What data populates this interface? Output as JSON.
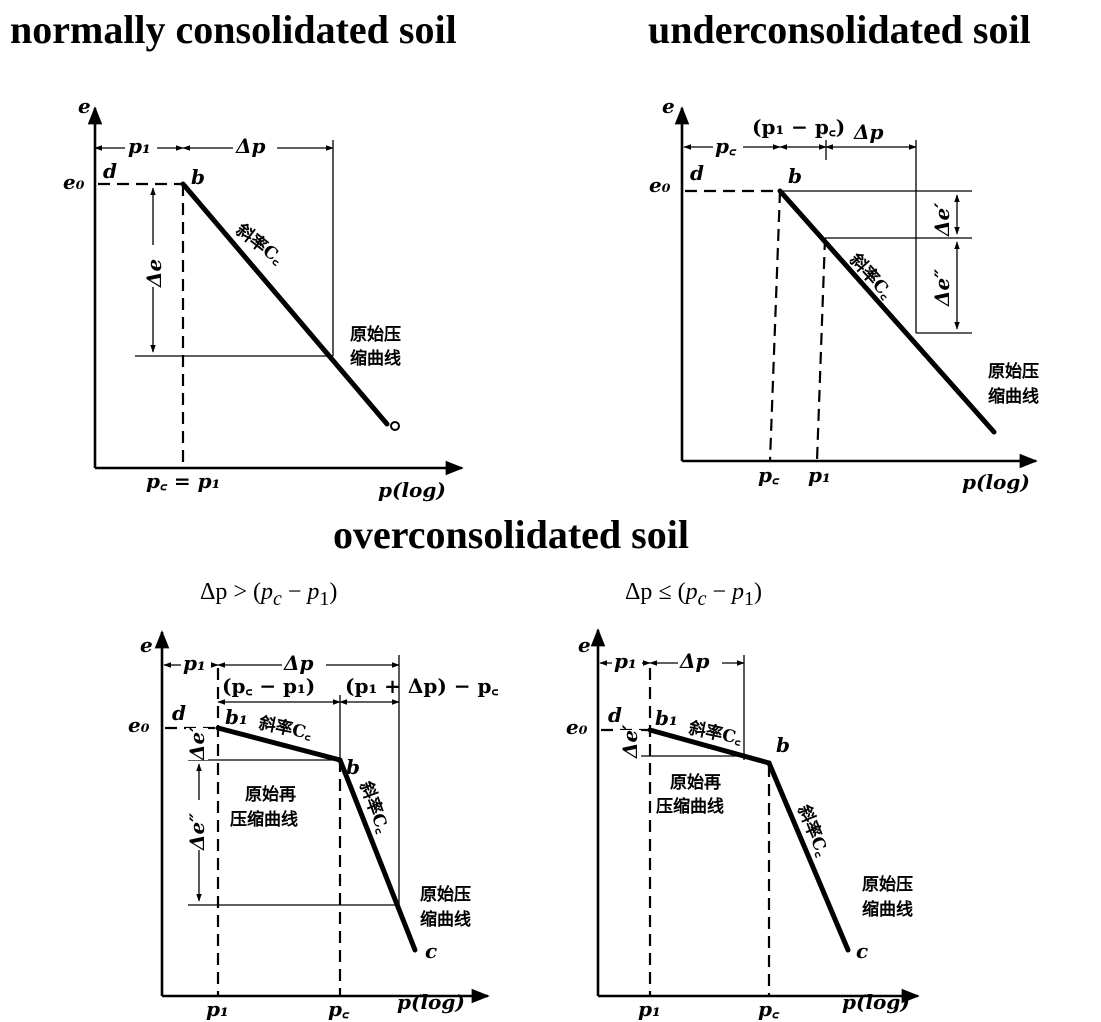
{
  "headings": {
    "normal": "normally consolidated soil",
    "under": "underconsolidated soil",
    "over": "overconsolidated soil"
  },
  "conditions": {
    "left": {
      "lhs": "Δp",
      "op": ">",
      "pc": "p",
      "pcsub": "c",
      "minus": "−",
      "p1": "p",
      "p1sub": "1"
    },
    "right": {
      "lhs": "Δp",
      "op": "≤",
      "pc": "p",
      "pcsub": "c",
      "minus": "−",
      "p1": "p",
      "p1sub": "1"
    }
  },
  "labels": {
    "e_axis": "e",
    "e0": "e₀",
    "p_axis": "p(log)",
    "d": "d",
    "b": "b",
    "b1": "b₁",
    "c": "c",
    "p1": "p₁",
    "pc": "p꜀",
    "dp": "Δp",
    "de": "Δe",
    "de1": "Δe′",
    "de2": "Δe″",
    "pc_eq_p1": "p꜀ = p₁",
    "pc_minus_p1": "(p꜀ − p₁)",
    "p1_minus_pc": "(p₁ − p꜀)",
    "p1dp_minus_pc": "(p₁ + Δp) − p꜀",
    "slope_cc": "斜率C꜀",
    "slope_ce": "斜率C꜀",
    "virgin_curve_1": "原始压",
    "virgin_curve_2": "缩曲线",
    "recomp_curve_1": "原始再",
    "recomp_curve_2": "压缩曲线"
  }
}
